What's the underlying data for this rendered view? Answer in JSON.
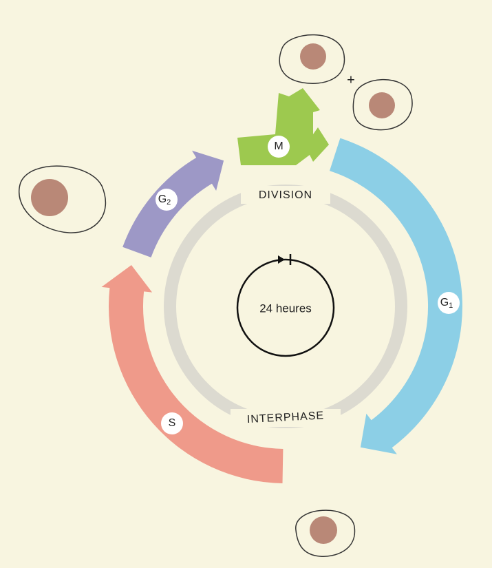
{
  "center_label": "24 heures",
  "ring_labels": {
    "top": "DIVISION",
    "bottom": "INTERPHASE"
  },
  "phases": [
    {
      "letter": "M"
    },
    {
      "letter": "G",
      "sub": "1"
    },
    {
      "letter": "S"
    },
    {
      "letter": "G",
      "sub": "2"
    }
  ],
  "plus": "+"
}
